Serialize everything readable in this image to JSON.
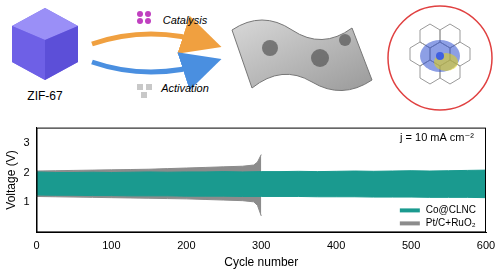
{
  "diagram": {
    "precursor": "ZIF-67",
    "upper_arrow": "Catalysis",
    "lower_arrow": "Activation"
  },
  "chart_data": {
    "type": "line",
    "x_label": "Cycle number",
    "y_label": "Voltage (V)",
    "annotation": "j = 10 mA cm⁻²",
    "xlim": [
      0,
      600
    ],
    "xticks": [
      0,
      100,
      200,
      300,
      400,
      500,
      600
    ],
    "ylim": [
      0,
      3.5
    ],
    "yticks": [
      1,
      2,
      3
    ],
    "grid": false,
    "legend": "lower right",
    "series": [
      {
        "name": "Co@CLNC",
        "color": "#1a9a8f",
        "x": [
          0,
          25,
          50,
          75,
          100,
          125,
          150,
          175,
          200,
          225,
          250,
          275,
          300,
          325,
          350,
          375,
          400,
          425,
          450,
          475,
          500,
          525,
          550,
          575,
          600
        ],
        "values": [
          2.02,
          2.0,
          2.0,
          2.01,
          2.0,
          2.01,
          2.02,
          2.01,
          2.02,
          2.02,
          2.03,
          2.02,
          2.03,
          2.03,
          2.04,
          2.03,
          2.04,
          2.05,
          2.04,
          2.05,
          2.06,
          2.05,
          2.06,
          2.07,
          2.08
        ],
        "lower": [
          1.25,
          1.24,
          1.24,
          1.23,
          1.23,
          1.22,
          1.22,
          1.22,
          1.21,
          1.21,
          1.21,
          1.2,
          1.2,
          1.2,
          1.2,
          1.19,
          1.19,
          1.19,
          1.18,
          1.18,
          1.18,
          1.17,
          1.17,
          1.17,
          1.16
        ]
      },
      {
        "name": "Pt/C+RuO₂",
        "color": "#8c8c8c",
        "x": [
          0,
          25,
          50,
          75,
          100,
          125,
          150,
          175,
          200,
          225,
          250,
          275,
          290,
          295,
          300
        ],
        "values": [
          2.05,
          2.06,
          2.07,
          2.08,
          2.09,
          2.1,
          2.11,
          2.13,
          2.15,
          2.17,
          2.19,
          2.21,
          2.25,
          2.35,
          2.6
        ],
        "lower": [
          1.2,
          1.19,
          1.18,
          1.17,
          1.16,
          1.15,
          1.14,
          1.13,
          1.12,
          1.1,
          1.08,
          1.06,
          1.02,
          0.9,
          0.55
        ]
      }
    ]
  }
}
